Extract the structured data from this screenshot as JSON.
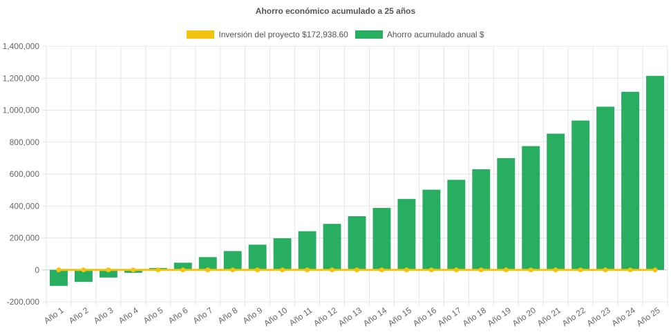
{
  "chart_data": {
    "type": "bar",
    "title": "Ahorro económico acumulado a 25 años",
    "categories": [
      "Año 1",
      "Año 2",
      "Año 3",
      "Año 4",
      "Año 5",
      "Año 6",
      "Año 7",
      "Año 8",
      "Año 9",
      "Año 10",
      "Año 11",
      "Año 12",
      "Año 13",
      "Año 14",
      "Año 15",
      "Año 16",
      "Año 17",
      "Año 18",
      "Año 19",
      "Año 20",
      "Año 21",
      "Año 22",
      "Año 23",
      "Año 24",
      "Año 25"
    ],
    "series": [
      {
        "name": "Inversión del proyecto $172,938.60",
        "kind": "line",
        "color": "#f1c40f",
        "values": [
          0,
          0,
          0,
          0,
          0,
          0,
          0,
          0,
          0,
          0,
          0,
          0,
          0,
          0,
          0,
          0,
          0,
          0,
          0,
          0,
          0,
          0,
          0,
          0,
          0
        ]
      },
      {
        "name": "Ahorro acumulado anual $",
        "kind": "bar",
        "color": "#27ae60",
        "values": [
          -100000,
          -75000,
          -48000,
          -18000,
          12000,
          45000,
          80000,
          118000,
          158000,
          198000,
          242000,
          288000,
          336000,
          388000,
          444000,
          502000,
          564000,
          630000,
          700000,
          775000,
          853000,
          935000,
          1022000,
          1115000,
          1215000
        ]
      }
    ],
    "ylim": [
      -200000,
      1400000
    ],
    "yticks": [
      -200000,
      0,
      200000,
      400000,
      600000,
      800000,
      1000000,
      1200000,
      1400000
    ],
    "ytick_labels": [
      "-200,000",
      "0",
      "200,000",
      "400,000",
      "600,000",
      "800,000",
      "1,000,000",
      "1,200,000",
      "1,400,000"
    ],
    "grid": true,
    "legend_position": "top"
  }
}
